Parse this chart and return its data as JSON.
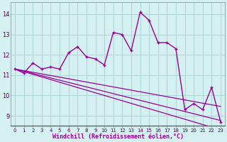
{
  "x": [
    0,
    1,
    2,
    3,
    4,
    5,
    6,
    7,
    8,
    9,
    10,
    11,
    12,
    13,
    14,
    15,
    16,
    17,
    18,
    19,
    20,
    21,
    22,
    23
  ],
  "y_line": [
    11.3,
    11.1,
    11.6,
    11.3,
    11.4,
    11.3,
    12.1,
    12.4,
    11.9,
    11.8,
    11.5,
    13.1,
    13.0,
    12.2,
    14.1,
    13.7,
    12.6,
    12.6,
    12.3,
    9.3,
    9.6,
    9.3,
    10.4,
    8.7
  ],
  "y_trend1": [
    11.3,
    11.22,
    11.14,
    11.06,
    10.98,
    10.9,
    10.82,
    10.74,
    10.66,
    10.58,
    10.5,
    10.42,
    10.34,
    10.26,
    10.18,
    10.1,
    10.02,
    9.94,
    9.86,
    9.78,
    9.7,
    9.62,
    9.54,
    9.46
  ],
  "y_trend2": [
    11.3,
    11.17,
    11.04,
    10.91,
    10.78,
    10.65,
    10.52,
    10.39,
    10.26,
    10.13,
    10.0,
    9.87,
    9.74,
    9.61,
    9.48,
    9.35,
    9.22,
    9.09,
    8.96,
    8.83,
    8.7,
    8.57,
    8.44,
    8.31
  ],
  "y_trend3": [
    11.3,
    11.19,
    11.08,
    10.97,
    10.86,
    10.75,
    10.64,
    10.53,
    10.42,
    10.31,
    10.2,
    10.09,
    9.98,
    9.87,
    9.76,
    9.65,
    9.54,
    9.43,
    9.32,
    9.21,
    9.1,
    8.99,
    8.88,
    8.77
  ],
  "line_color": "#990099",
  "bg_color": "#d4f0f0",
  "grid_color": "#b0d8d8",
  "axis_line_color": "#888888",
  "ylabel_ticks": [
    9,
    10,
    11,
    12,
    13,
    14
  ],
  "xlabel": "Windchill (Refroidissement éolien,°C)",
  "ylim": [
    8.5,
    14.6
  ],
  "xlim": [
    -0.5,
    23.5
  ]
}
